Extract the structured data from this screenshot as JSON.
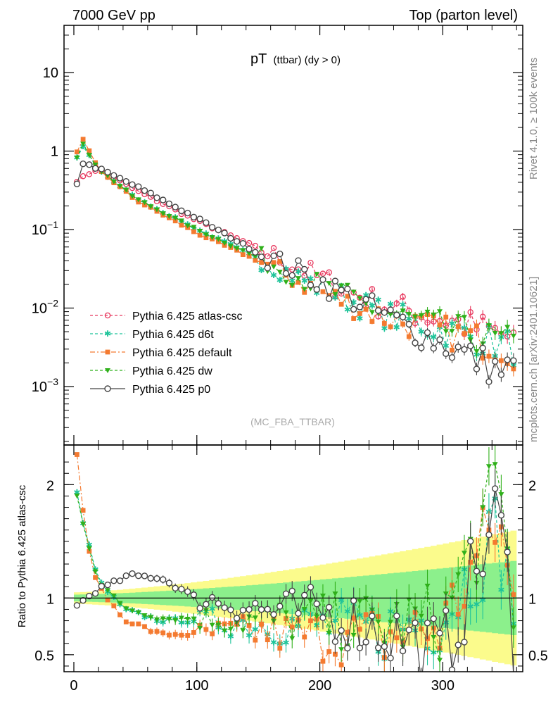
{
  "header": {
    "left": "7000 GeV pp",
    "right": "Top (parton level)"
  },
  "side_labels": {
    "rivet": "Rivet 4.1.0, ≥ 100k events",
    "mcplots": "mcplots.cern.ch [arXiv:2401.10621]"
  },
  "analysis_tag": "(MC_FBA_TTBAR)",
  "colors": {
    "atlas_csc": "#e8385e",
    "d6t": "#1fc49a",
    "default": "#f47a30",
    "dw": "#2fb01a",
    "p0": "#444444",
    "band_outer": "#fbfb8c",
    "band_inner": "#8cf08c"
  },
  "chart_data": [
    {
      "type": "line",
      "title_main": "pT",
      "title_sub": "(ttbar) (dy > 0)",
      "xlabel": "",
      "ylabel": "",
      "yscale": "log",
      "xlim": [
        -8,
        365
      ],
      "ylim": [
        0.00018,
        40
      ],
      "y_ticks": [
        {
          "value": 10,
          "label": "10"
        },
        {
          "value": 1,
          "label": "1"
        },
        {
          "value": 0.1,
          "base": "10",
          "exp": "−1"
        },
        {
          "value": 0.01,
          "base": "10",
          "exp": "−2"
        },
        {
          "value": 0.001,
          "base": "10",
          "exp": "−3"
        }
      ],
      "legend": [
        "Pythia 6.425 atlas-csc",
        "Pythia 6.425 d6t",
        "Pythia 6.425 default",
        "Pythia 6.425 dw",
        "Pythia 6.425 p0"
      ],
      "legend_position": "bottom-left",
      "series": [
        {
          "name": "Pythia 6.425 atlas-csc",
          "x": [
            2.5,
            20,
            50,
            100,
            150,
            200,
            250,
            300,
            350,
            360
          ],
          "y": [
            0.42,
            0.6,
            0.32,
            0.13,
            0.058,
            0.024,
            0.011,
            0.0072,
            0.0045,
            0.0038
          ]
        },
        {
          "name": "Pythia 6.425 d6t",
          "x": [
            2.5,
            7.5,
            20,
            50,
            100,
            150,
            200,
            250,
            300,
            350,
            360
          ],
          "y": [
            0.8,
            1.15,
            0.58,
            0.25,
            0.1,
            0.043,
            0.018,
            0.0085,
            0.0052,
            0.0034,
            0.003
          ]
        },
        {
          "name": "Pythia 6.425 default",
          "x": [
            2.5,
            7.5,
            20,
            50,
            100,
            150,
            200,
            250,
            300,
            350,
            360
          ],
          "y": [
            0.95,
            1.38,
            0.58,
            0.24,
            0.09,
            0.04,
            0.016,
            0.0078,
            0.005,
            0.0032,
            0.0028
          ]
        },
        {
          "name": "Pythia 6.425 dw",
          "x": [
            2.5,
            7.5,
            20,
            50,
            100,
            150,
            200,
            250,
            300,
            350,
            360
          ],
          "y": [
            0.82,
            1.2,
            0.6,
            0.25,
            0.1,
            0.044,
            0.019,
            0.009,
            0.0055,
            0.0036,
            0.0031
          ]
        },
        {
          "name": "Pythia 6.425 p0",
          "x": [
            2.5,
            7.5,
            20,
            50,
            100,
            150,
            200,
            250,
            300,
            350,
            360
          ],
          "y": [
            0.39,
            0.7,
            0.6,
            0.36,
            0.14,
            0.05,
            0.022,
            0.0085,
            0.0035,
            0.0015,
            0.0019
          ]
        }
      ]
    },
    {
      "type": "line",
      "ylabel": "Ratio to Pythia 6.425 atlas-csc",
      "xlim": [
        -8,
        365
      ],
      "ylim": [
        0.35,
        2.35
      ],
      "x_ticks": [
        0,
        100,
        200,
        300
      ],
      "y_ticks": [
        0.5,
        1,
        2
      ],
      "reference_line": 1,
      "series": [
        {
          "name": "Pythia 6.425 d6t",
          "x": [
            2.5,
            10,
            20,
            40,
            70,
            100,
            150,
            200,
            250,
            300,
            345,
            360
          ],
          "y": [
            1.92,
            1.55,
            1.15,
            0.9,
            0.8,
            0.8,
            0.78,
            0.75,
            0.72,
            0.85,
            1.6,
            0.8
          ]
        },
        {
          "name": "Pythia 6.425 default",
          "x": [
            2.5,
            10,
            20,
            40,
            70,
            100,
            150,
            200,
            250,
            300,
            345,
            360
          ],
          "y": [
            2.27,
            1.5,
            1.1,
            0.82,
            0.68,
            0.68,
            0.7,
            0.66,
            0.65,
            0.75,
            1.7,
            0.75
          ]
        },
        {
          "name": "Pythia 6.425 dw",
          "x": [
            2.5,
            10,
            20,
            40,
            70,
            100,
            150,
            200,
            250,
            300,
            345,
            360
          ],
          "y": [
            1.9,
            1.55,
            1.15,
            0.92,
            0.82,
            0.82,
            0.8,
            0.8,
            0.76,
            0.8,
            1.95,
            0.8
          ]
        },
        {
          "name": "Pythia 6.425 p0",
          "x": [
            2.5,
            10,
            20,
            30,
            45,
            70,
            100,
            130,
            160,
            200,
            250,
            270,
            300,
            345,
            360
          ],
          "y": [
            0.93,
            1.0,
            1.08,
            1.12,
            1.2,
            1.18,
            1.0,
            0.95,
            0.88,
            0.88,
            0.72,
            0.65,
            0.48,
            1.75,
            0.55
          ]
        }
      ]
    }
  ]
}
